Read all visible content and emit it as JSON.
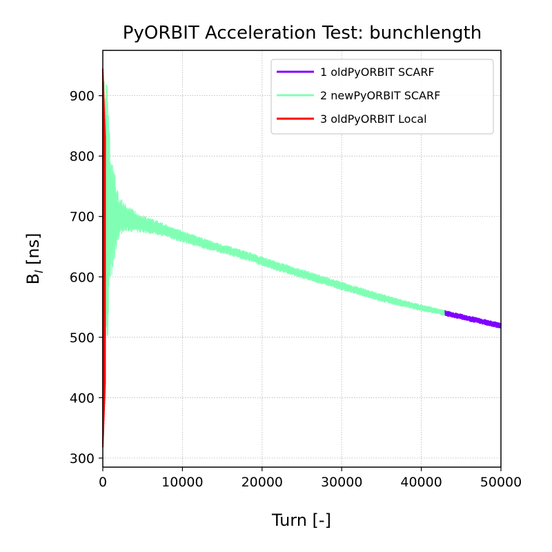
{
  "chart_data": {
    "type": "line",
    "title": "PyORBIT Acceleration Test: bunchlength",
    "xlabel": "Turn [-]",
    "ylabel_main": "B",
    "ylabel_sub": "l",
    "ylabel_unit": " [ns]",
    "xlim": [
      0,
      50000
    ],
    "ylim": [
      285,
      975
    ],
    "xticks": [
      0,
      10000,
      20000,
      30000,
      40000,
      50000
    ],
    "yticks": [
      300,
      400,
      500,
      600,
      700,
      800,
      900
    ],
    "grid": true,
    "legend_position": "top-right",
    "series": [
      {
        "name": "1 oldPyORBIT SCARF",
        "color": "#8000ff",
        "x": [
          43000,
          44000,
          45000,
          46000,
          47000,
          48000,
          49000,
          50000
        ],
        "y": [
          540,
          537,
          534,
          531,
          528,
          525,
          522,
          519
        ],
        "band": 5
      },
      {
        "name": "2 newPyORBIT SCARF",
        "color": "#80ffb4",
        "x": [
          0,
          200,
          500,
          1000,
          1500,
          2000,
          3000,
          4000,
          5000,
          6000,
          7000,
          8000,
          9000,
          10000,
          12000,
          14000,
          16000,
          18000,
          20000,
          22000,
          24000,
          26000,
          28000,
          30000,
          32000,
          34000,
          36000,
          38000,
          40000,
          42000,
          43000
        ],
        "y": [
          650,
          680,
          690,
          700,
          703,
          700,
          697,
          692,
          688,
          684,
          680,
          676,
          671,
          667,
          658,
          650,
          643,
          635,
          626,
          617,
          609,
          601,
          593,
          585,
          577,
          569,
          562,
          555,
          549,
          543,
          540
        ],
        "band_start": [
          0,
          500,
          1000,
          2000,
          3000,
          5000,
          8000,
          15000,
          25000,
          35000,
          43000
        ],
        "band_width": [
          300,
          240,
          110,
          35,
          22,
          15,
          11,
          8,
          8,
          7,
          5
        ]
      },
      {
        "name": "3 oldPyORBIT Local",
        "color": "#ff0000",
        "x": [
          0,
          300
        ],
        "y_min": 315,
        "y_max": 945
      }
    ]
  }
}
